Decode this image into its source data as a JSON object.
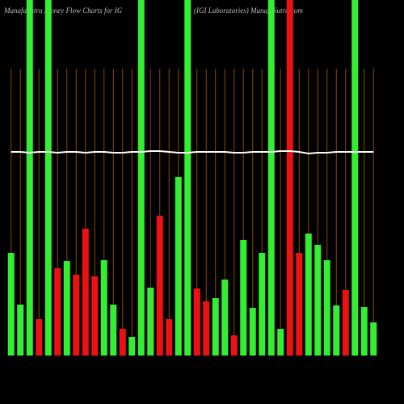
{
  "chart_data": {
    "type": "bar",
    "title": "MunafaSutra  Money Flow  Charts for IG",
    "subtitle": "(IGI Laboratories) MunafaSutra.com",
    "categories": [
      null,
      null,
      null,
      null,
      null,
      null,
      null,
      null,
      null,
      null,
      null,
      null,
      null,
      null,
      null,
      null,
      null,
      null,
      null,
      null,
      null,
      null,
      null,
      null,
      null,
      null,
      null,
      null,
      null,
      null,
      null,
      null,
      null,
      null,
      null,
      null,
      null,
      null,
      null,
      null
    ],
    "values": [
      127,
      63,
      440,
      45,
      440,
      108,
      117,
      100,
      157,
      98,
      118,
      63,
      33,
      23,
      440,
      84,
      173,
      45,
      221,
      440,
      83,
      67,
      71,
      94,
      25,
      143,
      59,
      127,
      440,
      33,
      440,
      127,
      151,
      137,
      118,
      62,
      81,
      440,
      60,
      41
    ],
    "colors": [
      "#33ee33",
      "#33ee33",
      "#33ee33",
      "#ee1111",
      "#33ee33",
      "#ee1111",
      "#33ee33",
      "#ee1111",
      "#ee1111",
      "#ee1111",
      "#33ee33",
      "#33ee33",
      "#ee1111",
      "#33ee33",
      "#33ee33",
      "#33ee33",
      "#ee1111",
      "#ee1111",
      "#33ee33",
      "#33ee33",
      "#ee1111",
      "#ee1111",
      "#33ee33",
      "#33ee33",
      "#ee1111",
      "#33ee33",
      "#33ee33",
      "#33ee33",
      "#33ee33",
      "#33ee33",
      "#ee1111",
      "#ee1111",
      "#33ee33",
      "#33ee33",
      "#33ee33",
      "#33ee33",
      "#ee1111",
      "#33ee33",
      "#33ee33",
      "#33ee33"
    ],
    "line_values": [
      252,
      252,
      251,
      252,
      252,
      251,
      252,
      252,
      251,
      252,
      252,
      251,
      251,
      252,
      252,
      253,
      253,
      252,
      251,
      251,
      252,
      252,
      252,
      252,
      251,
      251,
      252,
      252,
      252,
      253,
      253,
      252,
      250,
      251,
      251,
      252,
      252,
      252,
      252,
      252
    ],
    "line_color": "#ffffff",
    "category_line_color": "#8b4a00",
    "ylim": [
      0,
      440
    ]
  }
}
